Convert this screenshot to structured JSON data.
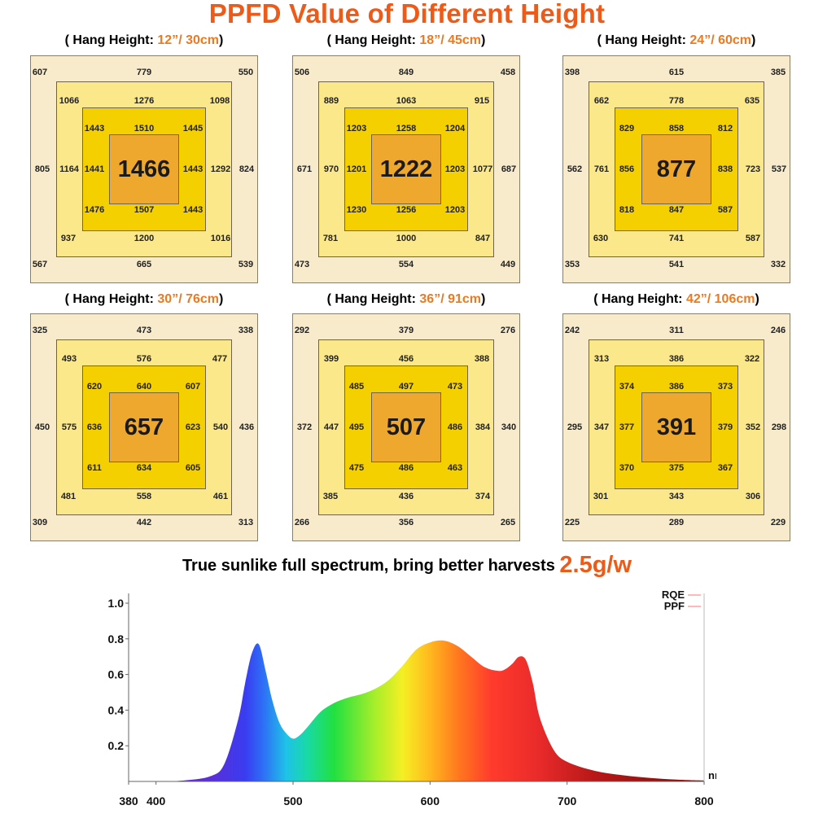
{
  "title": "PPFD Value of Different Height",
  "panels": [
    {
      "prefix": "( Hang Height: ",
      "height": "12”/ 30cm",
      "suffix": ")",
      "ring1": {
        "tl": "607",
        "t": "779",
        "tr": "550",
        "l": "805",
        "r": "824",
        "bl": "567",
        "b": "665",
        "br": "539"
      },
      "ring2": {
        "tl": "1066",
        "t": "1276",
        "tr": "1098",
        "l": "1164",
        "r": "1292",
        "bl": "937",
        "b": "1200",
        "br": "1016"
      },
      "ring3": {
        "tl": "1443",
        "t": "1510",
        "tr": "1445",
        "l": "1441",
        "r": "1443",
        "bl": "1476",
        "b": "1507",
        "br": "1443"
      },
      "center": "1466"
    },
    {
      "prefix": "( Hang Height: ",
      "height": "18”/ 45cm",
      "suffix": ")",
      "ring1": {
        "tl": "506",
        "t": "849",
        "tr": "458",
        "l": "671",
        "r": "687",
        "bl": "473",
        "b": "554",
        "br": "449"
      },
      "ring2": {
        "tl": "889",
        "t": "1063",
        "tr": "915",
        "l": "970",
        "r": "1077",
        "bl": "781",
        "b": "1000",
        "br": "847"
      },
      "ring3": {
        "tl": "1203",
        "t": "1258",
        "tr": "1204",
        "l": "1201",
        "r": "1203",
        "bl": "1230",
        "b": "1256",
        "br": "1203"
      },
      "center": "1222"
    },
    {
      "prefix": "( Hang Height: ",
      "height": "24”/ 60cm",
      "suffix": ")",
      "ring1": {
        "tl": "398",
        "t": "615",
        "tr": "385",
        "l": "562",
        "r": "537",
        "bl": "353",
        "b": "541",
        "br": "332"
      },
      "ring2": {
        "tl": "662",
        "t": "778",
        "tr": "635",
        "l": "761",
        "r": "723",
        "bl": "630",
        "b": "741",
        "br": "587"
      },
      "ring3": {
        "tl": "829",
        "t": "858",
        "tr": "812",
        "l": "856",
        "r": "838",
        "bl": "818",
        "b": "847",
        "br": "587"
      },
      "center": "877"
    },
    {
      "prefix": "( Hang Height: ",
      "height": "30”/ 76cm",
      "suffix": ")",
      "ring1": {
        "tl": "325",
        "t": "473",
        "tr": "338",
        "l": "450",
        "r": "436",
        "bl": "309",
        "b": "442",
        "br": "313"
      },
      "ring2": {
        "tl": "493",
        "t": "576",
        "tr": "477",
        "l": "575",
        "r": "540",
        "bl": "481",
        "b": "558",
        "br": "461"
      },
      "ring3": {
        "tl": "620",
        "t": "640",
        "tr": "607",
        "l": "636",
        "r": "623",
        "bl": "611",
        "b": "634",
        "br": "605"
      },
      "center": "657"
    },
    {
      "prefix": "( Hang Height: ",
      "height": "36”/ 91cm",
      "suffix": ")",
      "ring1": {
        "tl": "292",
        "t": "379",
        "tr": "276",
        "l": "372",
        "r": "340",
        "bl": "266",
        "b": "356",
        "br": "265"
      },
      "ring2": {
        "tl": "399",
        "t": "456",
        "tr": "388",
        "l": "447",
        "r": "384",
        "bl": "385",
        "b": "436",
        "br": "374"
      },
      "ring3": {
        "tl": "485",
        "t": "497",
        "tr": "473",
        "l": "495",
        "r": "486",
        "bl": "475",
        "b": "486",
        "br": "463"
      },
      "center": "507"
    },
    {
      "prefix": "( Hang Height: ",
      "height": "42”/ 106cm",
      "suffix": ")",
      "ring1": {
        "tl": "242",
        "t": "311",
        "tr": "246",
        "l": "295",
        "r": "298",
        "bl": "225",
        "b": "289",
        "br": "229"
      },
      "ring2": {
        "tl": "313",
        "t": "386",
        "tr": "322",
        "l": "347",
        "r": "352",
        "bl": "301",
        "b": "343",
        "br": "306"
      },
      "ring3": {
        "tl": "374",
        "t": "386",
        "tr": "373",
        "l": "377",
        "r": "379",
        "bl": "370",
        "b": "375",
        "br": "367"
      },
      "center": "391"
    }
  ],
  "spectrum_heading": {
    "text": "True sunlike full spectrum, bring better harvests ",
    "highlight": "2.5g/w"
  },
  "chart_data": {
    "type": "area",
    "title": "",
    "xlabel": "nm",
    "ylabel": "",
    "xlim": [
      380,
      800
    ],
    "ylim": [
      0,
      1.0
    ],
    "x_ticks": [
      380,
      400,
      500,
      600,
      700,
      800
    ],
    "y_ticks": [
      0.2,
      0.4,
      0.6,
      0.8,
      1.0
    ],
    "fill": "visible-spectrum gradient",
    "legend": {
      "placement": "top-right",
      "entries": [
        {
          "label": "RQE",
          "color": "#ff8a8a"
        },
        {
          "label": "PPF",
          "color": "#ff8a8a"
        }
      ]
    },
    "x": [
      380,
      400,
      420,
      440,
      450,
      460,
      465,
      470,
      475,
      480,
      485,
      490,
      495,
      500,
      505,
      510,
      520,
      530,
      540,
      550,
      560,
      570,
      580,
      590,
      600,
      610,
      620,
      630,
      640,
      650,
      655,
      660,
      665,
      670,
      675,
      680,
      690,
      700,
      720,
      740,
      760,
      780,
      800
    ],
    "y": [
      0.0,
      0.0,
      0.005,
      0.03,
      0.1,
      0.35,
      0.55,
      0.72,
      0.77,
      0.62,
      0.45,
      0.33,
      0.27,
      0.24,
      0.26,
      0.3,
      0.39,
      0.44,
      0.47,
      0.49,
      0.52,
      0.57,
      0.65,
      0.74,
      0.78,
      0.79,
      0.76,
      0.7,
      0.64,
      0.62,
      0.63,
      0.66,
      0.7,
      0.68,
      0.55,
      0.36,
      0.18,
      0.11,
      0.06,
      0.035,
      0.02,
      0.01,
      0.005
    ]
  }
}
